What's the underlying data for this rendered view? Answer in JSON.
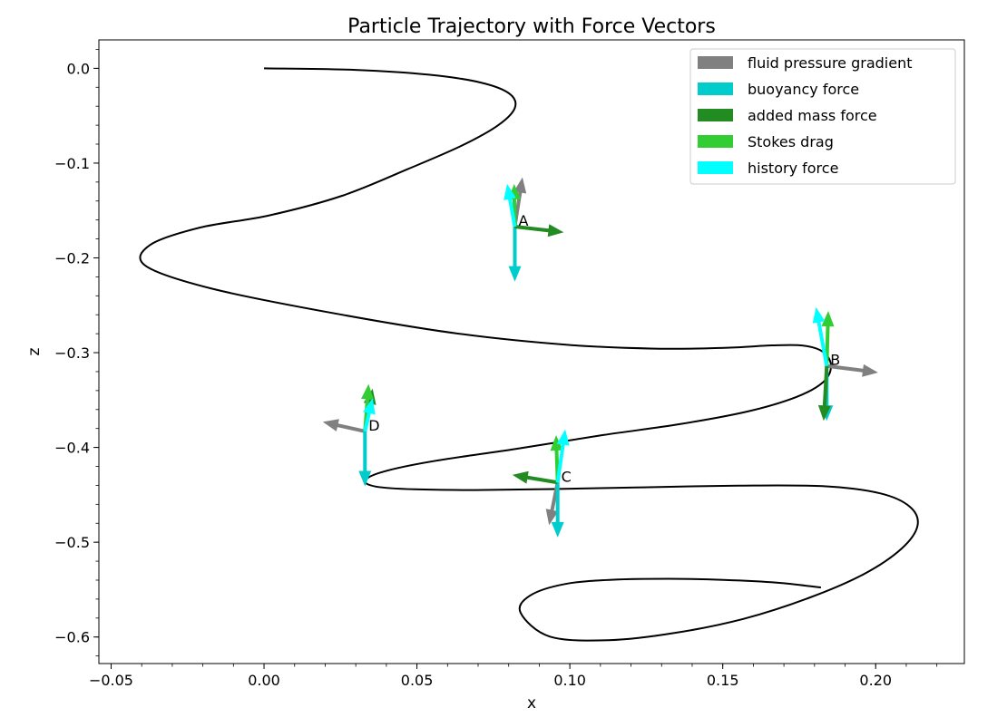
{
  "chart_data": {
    "type": "line",
    "title": "Particle Trajectory with Force Vectors",
    "xlabel": "x",
    "ylabel": "z",
    "xlim": [
      -0.054,
      0.229
    ],
    "ylim": [
      -0.628,
      0.03
    ],
    "x_ticks": [
      -0.05,
      0.0,
      0.05,
      0.1,
      0.15,
      0.2
    ],
    "x_tick_labels": [
      "−0.05",
      "0.00",
      "0.05",
      "0.10",
      "0.15",
      "0.20"
    ],
    "y_ticks": [
      0.0,
      -0.1,
      -0.2,
      -0.3,
      -0.4,
      -0.5,
      -0.6
    ],
    "y_tick_labels": [
      "0.0",
      "−0.1",
      "−0.2",
      "−0.3",
      "−0.4",
      "−0.5",
      "−0.6"
    ],
    "x_minor_step": 0.01,
    "y_minor_step": 0.02,
    "grid": false,
    "legend_position": "top-right",
    "trajectory": {
      "color": "#000000",
      "x": [
        0.0,
        0.0299,
        0.0539,
        0.0709,
        0.0803,
        0.082,
        0.0765,
        0.0645,
        0.0469,
        0.0255,
        0.0017,
        -0.0209,
        -0.0373,
        -0.0387,
        -0.0171,
        0.0214,
        0.0626,
        0.0996,
        0.1296,
        0.1515,
        0.1661,
        0.1763,
        0.1829,
        0.1854,
        0.1828,
        0.1741,
        0.158,
        0.1359,
        0.1109,
        0.0823,
        0.0555,
        0.0392,
        0.0331,
        0.0366,
        0.0493,
        0.0692,
        0.0948,
        0.1241,
        0.1549,
        0.1826,
        0.2014,
        0.2112,
        0.2137,
        0.2085,
        0.1962,
        0.1782,
        0.1567,
        0.1342,
        0.1126,
        0.0935,
        0.0839,
        0.0869,
        0.0984,
        0.1144,
        0.1323,
        0.1503,
        0.1681,
        0.1821
      ],
      "z": [
        0.0,
        -0.0017,
        -0.0067,
        -0.015,
        -0.0268,
        -0.0418,
        -0.0602,
        -0.0818,
        -0.1065,
        -0.1345,
        -0.1552,
        -0.168,
        -0.1864,
        -0.2084,
        -0.2324,
        -0.2576,
        -0.2795,
        -0.2918,
        -0.2958,
        -0.2948,
        -0.2923,
        -0.2925,
        -0.2994,
        -0.3142,
        -0.3311,
        -0.3467,
        -0.3621,
        -0.3754,
        -0.3869,
        -0.4015,
        -0.4144,
        -0.4254,
        -0.4348,
        -0.4413,
        -0.4442,
        -0.4449,
        -0.4439,
        -0.4421,
        -0.4403,
        -0.4408,
        -0.4484,
        -0.4626,
        -0.4824,
        -0.5066,
        -0.5335,
        -0.5587,
        -0.5809,
        -0.5958,
        -0.6034,
        -0.5996,
        -0.5745,
        -0.5565,
        -0.5441,
        -0.5395,
        -0.5386,
        -0.5398,
        -0.5428,
        -0.5478
      ]
    },
    "force_series": [
      {
        "name": "fluid pressure gradient",
        "color": "#808080"
      },
      {
        "name": "buoyancy force",
        "color": "#00cccc"
      },
      {
        "name": "added mass force",
        "color": "#228b22"
      },
      {
        "name": "Stokes drag",
        "color": "#32cd32"
      },
      {
        "name": "history force",
        "color": "#00ffff"
      }
    ],
    "points": [
      {
        "label": "A",
        "x": 0.082,
        "z": -0.167,
        "vectors": [
          {
            "series": "fluid pressure gradient",
            "dx": 0.0025,
            "dz": 0.052
          },
          {
            "series": "buoyancy force",
            "dx": 0.0,
            "dz": -0.058
          },
          {
            "series": "added mass force",
            "dx": 0.016,
            "dz": -0.006
          },
          {
            "series": "Stokes drag",
            "dx": -0.0002,
            "dz": 0.045
          },
          {
            "series": "history force",
            "dx": -0.0025,
            "dz": 0.045
          }
        ]
      },
      {
        "label": "B",
        "x": 0.184,
        "z": -0.314,
        "vectors": [
          {
            "series": "fluid pressure gradient",
            "dx": 0.0168,
            "dz": -0.007
          },
          {
            "series": "buoyancy force",
            "dx": 0.0,
            "dz": -0.058
          },
          {
            "series": "added mass force",
            "dx": -0.001,
            "dz": -0.058
          },
          {
            "series": "Stokes drag",
            "dx": 0.0005,
            "dz": 0.058
          },
          {
            "series": "history force",
            "dx": -0.0035,
            "dz": 0.062
          }
        ]
      },
      {
        "label": "C",
        "x": 0.096,
        "z": -0.437,
        "vectors": [
          {
            "series": "fluid pressure gradient",
            "dx": -0.0028,
            "dz": -0.045
          },
          {
            "series": "buoyancy force",
            "dx": 0.0,
            "dz": -0.058
          },
          {
            "series": "added mass force",
            "dx": -0.0148,
            "dz": 0.008
          },
          {
            "series": "Stokes drag",
            "dx": -0.0005,
            "dz": 0.05
          },
          {
            "series": "history force",
            "dx": 0.0025,
            "dz": 0.056
          }
        ]
      },
      {
        "label": "D",
        "x": 0.033,
        "z": -0.383,
        "vectors": [
          {
            "series": "fluid pressure gradient",
            "dx": -0.0138,
            "dz": 0.01
          },
          {
            "series": "buoyancy force",
            "dx": 0.0,
            "dz": -0.058
          },
          {
            "series": "added mass force",
            "dx": 0.0025,
            "dz": 0.045
          },
          {
            "series": "Stokes drag",
            "dx": 0.0012,
            "dz": 0.05
          },
          {
            "series": "history force",
            "dx": 0.0025,
            "dz": 0.035
          }
        ]
      }
    ]
  }
}
